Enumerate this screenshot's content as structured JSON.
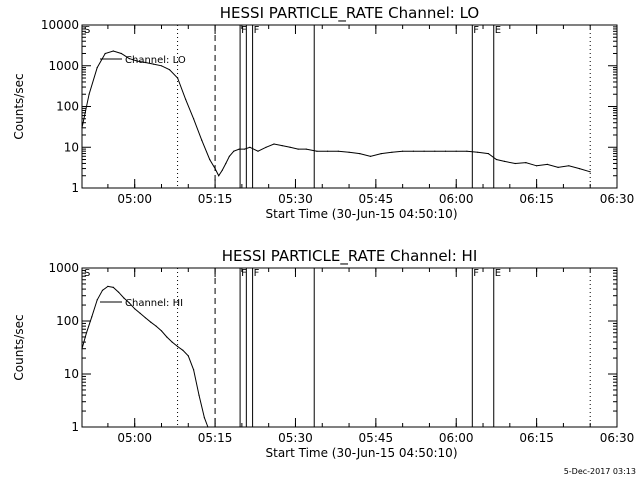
{
  "footer": {
    "date_stamp": "5-Dec-2017 03:13"
  },
  "chart_data": [
    {
      "type": "line",
      "title": "HESSI PARTICLE_RATE Channel: LO",
      "xlabel": "Start Time (30-Jun-15 04:50:10)",
      "ylabel": "Counts/sec",
      "scale_y": "log",
      "xlim": [
        "04:50:10",
        "06:30:00"
      ],
      "ylim": [
        1,
        10000
      ],
      "x_ticks": [
        "05:00",
        "05:15",
        "05:30",
        "05:45",
        "06:00",
        "06:15",
        "06:30"
      ],
      "y_ticks": [
        "1",
        "10",
        "100",
        "1000",
        "10000"
      ],
      "legend": "Channel: LO",
      "series": [
        {
          "name": "Channel: LO",
          "x": [
            "04:50:10",
            "04:51:30",
            "04:53:00",
            "04:54:30",
            "04:56:00",
            "04:57:30",
            "04:59:00",
            "05:00:30",
            "05:02:00",
            "05:03:30",
            "05:05:00",
            "05:06:30",
            "05:08:00",
            "05:09:30",
            "05:11:00",
            "05:12:30",
            "05:14:00",
            "05:15:00",
            "05:15:40",
            "05:16:20",
            "05:17:00",
            "05:17:40",
            "05:18:30",
            "05:19:30",
            "05:20:30",
            "05:21:30",
            "05:23:00",
            "05:24:30",
            "05:26:00",
            "05:27:30",
            "05:29:00",
            "05:30:30",
            "05:32:00",
            "05:34:00",
            "05:36:00",
            "05:38:00",
            "05:40:00",
            "05:42:00",
            "05:44:00",
            "05:46:00",
            "05:48:00",
            "05:50:00",
            "05:52:00",
            "05:54:00",
            "05:56:00",
            "05:58:00",
            "06:00:00",
            "06:02:00",
            "06:04:00",
            "06:06:00",
            "06:07:30",
            "06:09:00",
            "06:11:00",
            "06:13:00",
            "06:15:00",
            "06:17:00",
            "06:19:00",
            "06:21:00",
            "06:23:00",
            "06:25:00"
          ],
          "values": [
            30,
            200,
            900,
            2000,
            2300,
            2000,
            1500,
            1300,
            1200,
            1100,
            1000,
            800,
            500,
            150,
            50,
            15,
            5,
            3,
            2,
            2.7,
            4,
            6,
            8,
            9,
            9,
            10,
            8,
            10,
            12,
            11,
            10,
            9,
            9,
            8,
            8,
            8,
            7.5,
            7,
            6,
            7,
            7.5,
            8,
            8,
            8,
            8,
            8,
            8,
            8,
            7.5,
            7,
            5,
            4.5,
            4,
            4.2,
            3.5,
            3.8,
            3.2,
            3.5,
            3,
            2.5
          ]
        }
      ],
      "annotations": [
        {
          "label": "S",
          "x": "04:50:10",
          "style": "marker"
        },
        {
          "label": "",
          "x": "05:08:00",
          "style": "dotted"
        },
        {
          "label": "",
          "x": "05:15:00",
          "style": "dashed"
        },
        {
          "label": "F",
          "x": "05:19:40",
          "style": "solid"
        },
        {
          "label": "",
          "x": "05:20:50",
          "style": "solid"
        },
        {
          "label": "F",
          "x": "05:22:00",
          "style": "solid"
        },
        {
          "label": "",
          "x": "05:33:30",
          "style": "solid"
        },
        {
          "label": "F",
          "x": "06:03:00",
          "style": "solid"
        },
        {
          "label": "E",
          "x": "06:07:00",
          "style": "solid"
        },
        {
          "label": "",
          "x": "06:25:00",
          "style": "dotted"
        }
      ]
    },
    {
      "type": "line",
      "title": "HESSI PARTICLE_RATE Channel: HI",
      "xlabel": "Start Time (30-Jun-15 04:50:10)",
      "ylabel": "Counts/sec",
      "scale_y": "log",
      "xlim": [
        "04:50:10",
        "06:30:00"
      ],
      "ylim": [
        1,
        1000
      ],
      "x_ticks": [
        "05:00",
        "05:15",
        "05:30",
        "05:45",
        "06:00",
        "06:15",
        "06:30"
      ],
      "y_ticks": [
        "1",
        "10",
        "100",
        "1000"
      ],
      "legend": "Channel: HI",
      "series": [
        {
          "name": "Channel: HI",
          "x": [
            "04:50:10",
            "04:51:00",
            "04:52:00",
            "04:53:00",
            "04:54:00",
            "04:55:00",
            "04:56:00",
            "04:57:00",
            "04:58:00",
            "04:59:00",
            "05:00:00",
            "05:01:00",
            "05:02:00",
            "05:03:00",
            "05:04:00",
            "05:05:00",
            "05:06:00",
            "05:07:00",
            "05:08:00",
            "05:09:00",
            "05:10:00",
            "05:11:00",
            "05:12:00",
            "05:13:00",
            "05:13:40"
          ],
          "values": [
            30,
            60,
            120,
            250,
            380,
            450,
            430,
            350,
            270,
            220,
            170,
            140,
            115,
            95,
            80,
            65,
            50,
            40,
            33,
            28,
            22,
            12,
            4,
            1.5,
            1
          ]
        }
      ],
      "annotations": [
        {
          "label": "S",
          "x": "04:50:10",
          "style": "marker"
        },
        {
          "label": "",
          "x": "05:08:00",
          "style": "dotted"
        },
        {
          "label": "",
          "x": "05:15:00",
          "style": "dashed"
        },
        {
          "label": "F",
          "x": "05:19:40",
          "style": "solid"
        },
        {
          "label": "",
          "x": "05:20:50",
          "style": "solid"
        },
        {
          "label": "F",
          "x": "05:22:00",
          "style": "solid"
        },
        {
          "label": "",
          "x": "05:33:30",
          "style": "solid"
        },
        {
          "label": "F",
          "x": "06:03:00",
          "style": "solid"
        },
        {
          "label": "E",
          "x": "06:07:00",
          "style": "solid"
        },
        {
          "label": "",
          "x": "06:25:00",
          "style": "dotted"
        }
      ]
    }
  ]
}
